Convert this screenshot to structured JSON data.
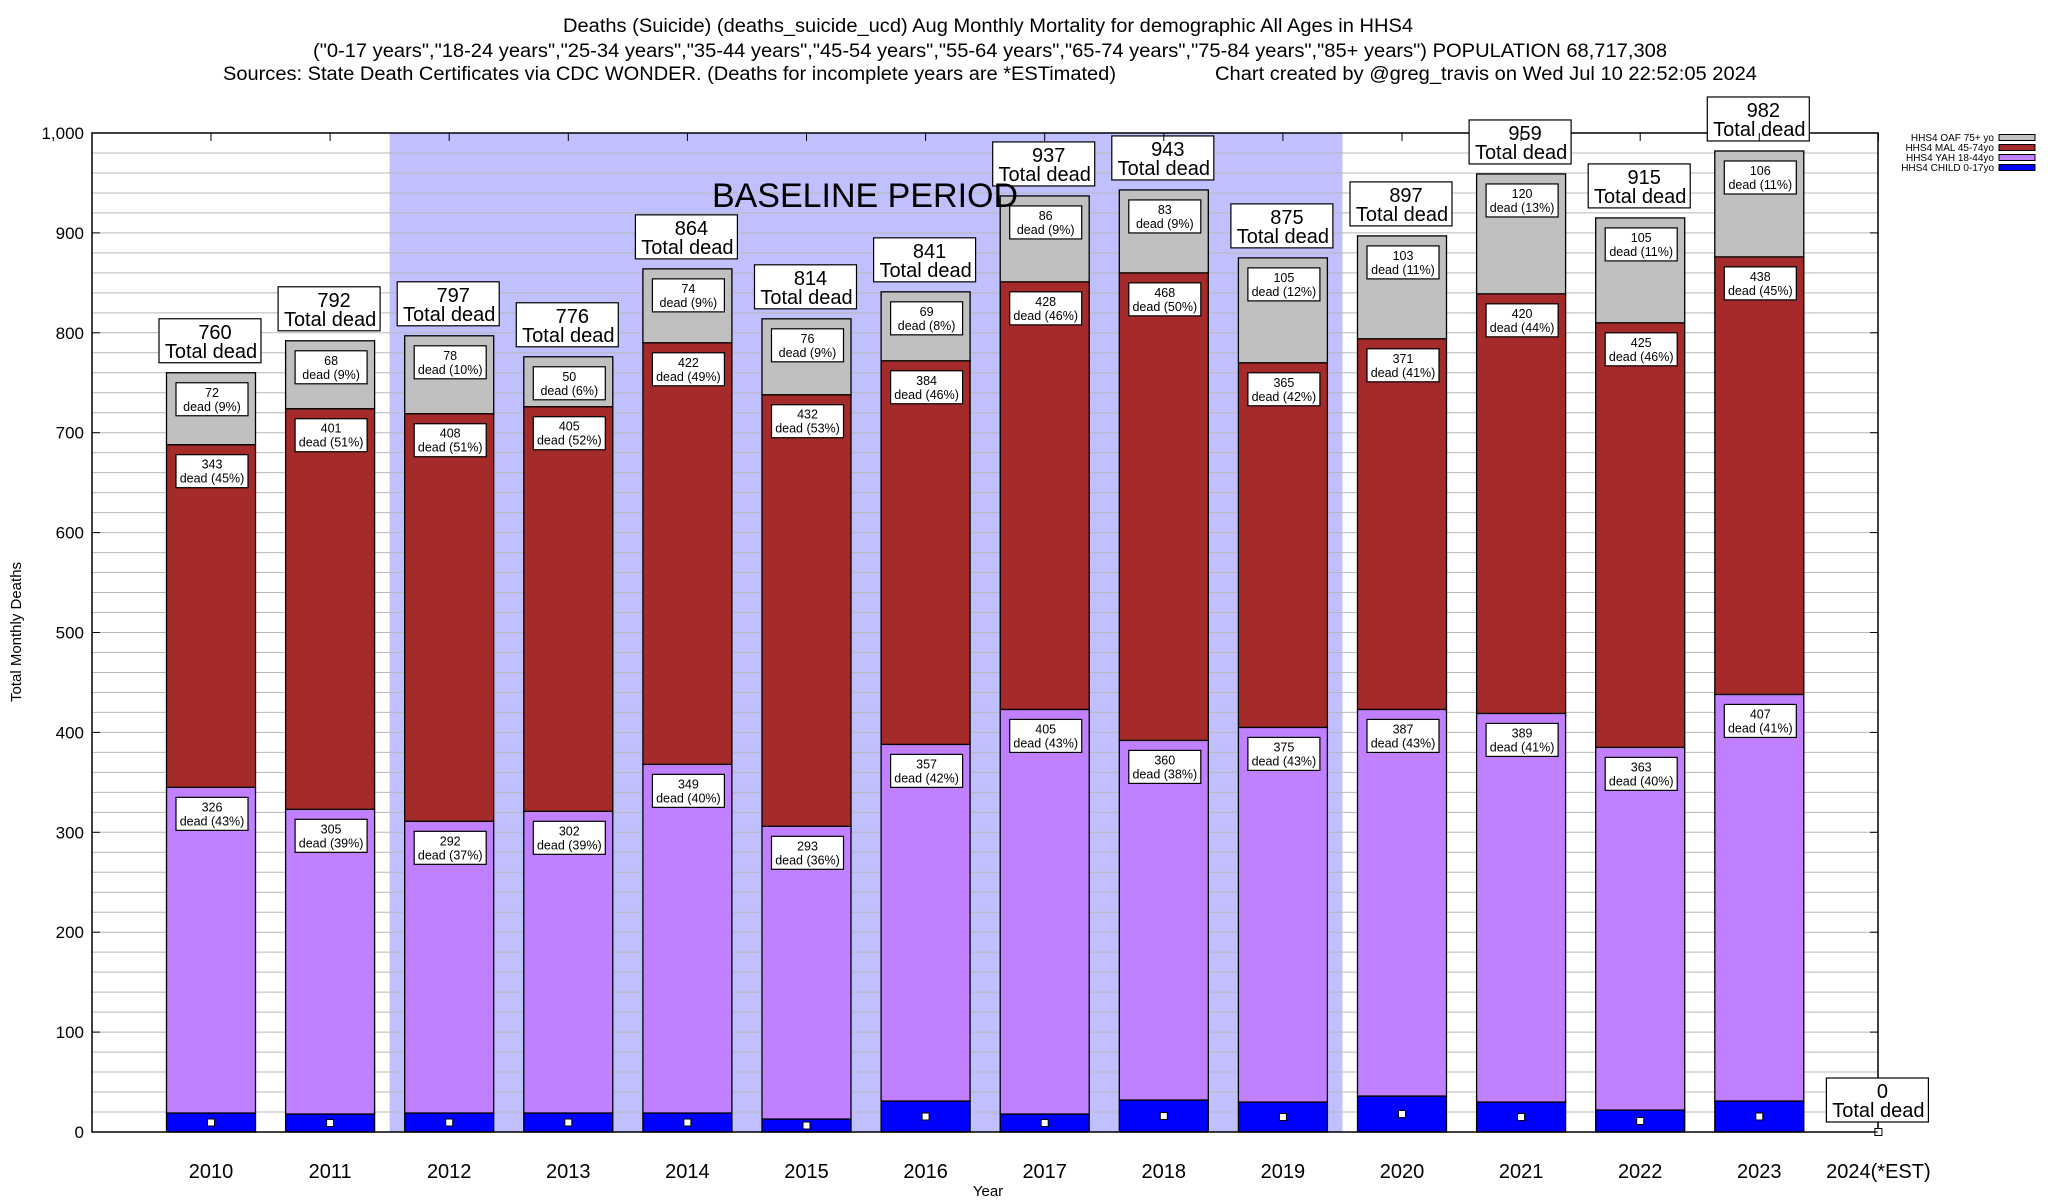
{
  "chart_data": {
    "type": "bar",
    "stacked": true,
    "title": "Deaths (Suicide) (deaths_suicide_ucd) Aug Monthly Mortality for demographic All Ages in HHS4",
    "subtitle": "(\"0-17 years\",\"18-24 years\",\"25-34 years\",\"35-44 years\",\"45-54 years\",\"55-64 years\",\"65-74 years\",\"75-84 years\",\"85+ years\") POPULATION 68,717,308",
    "sources": "Sources: State Death Certificates via CDC WONDER. (Deaths for incomplete years are *ESTimated)",
    "credit": "Chart created by @greg_travis on Wed Jul 10 22:52:05 2024",
    "xlabel": "Year",
    "ylabel": "Total Monthly Deaths",
    "ylim": [
      0,
      1000
    ],
    "yticks": [
      0,
      100,
      200,
      300,
      400,
      500,
      600,
      700,
      800,
      900,
      1000
    ],
    "ytick_labels": [
      "0",
      "100",
      "200",
      "300",
      "400",
      "500",
      "600",
      "700",
      "800",
      "900",
      "1,000"
    ],
    "grid": true,
    "legend_position": "top-right",
    "categories": [
      "2010",
      "2011",
      "2012",
      "2013",
      "2014",
      "2015",
      "2016",
      "2017",
      "2018",
      "2019",
      "2020",
      "2021",
      "2022",
      "2023",
      "2024(*EST)"
    ],
    "series": [
      {
        "name": "HHS4 CHILD 0-17yo",
        "color": "#0000ff",
        "values": [
          19,
          18,
          19,
          19,
          19,
          13,
          31,
          18,
          32,
          30,
          36,
          30,
          22,
          31,
          0
        ],
        "labeled": false
      },
      {
        "name": "HHS4 YAH 18-44yo",
        "color": "#c080ff",
        "values": [
          326,
          305,
          292,
          302,
          349,
          293,
          357,
          405,
          360,
          375,
          387,
          389,
          363,
          407,
          0
        ],
        "pct": [
          43,
          39,
          37,
          39,
          40,
          36,
          42,
          43,
          38,
          43,
          43,
          41,
          40,
          41,
          null
        ],
        "labeled": true
      },
      {
        "name": "HHS4 MAL 45-74yo",
        "color": "#a52a2a",
        "values": [
          343,
          401,
          408,
          405,
          422,
          432,
          384,
          428,
          468,
          365,
          371,
          420,
          425,
          438,
          0
        ],
        "pct": [
          45,
          51,
          51,
          52,
          49,
          53,
          46,
          46,
          50,
          42,
          41,
          44,
          46,
          45,
          null
        ],
        "labeled": true
      },
      {
        "name": "HHS4 OAF 75+ yo",
        "color": "#c0c0c0",
        "values": [
          72,
          68,
          78,
          50,
          74,
          76,
          69,
          86,
          83,
          105,
          103,
          120,
          105,
          106,
          0
        ],
        "pct": [
          9,
          9,
          10,
          6,
          9,
          9,
          8,
          9,
          9,
          12,
          11,
          13,
          11,
          11,
          null
        ],
        "labeled": true
      }
    ],
    "totals": [
      760,
      792,
      797,
      776,
      864,
      814,
      841,
      937,
      943,
      875,
      897,
      959,
      915,
      982,
      0
    ],
    "total_suffix": "Total dead",
    "dead_word": "dead",
    "legend_order": [
      "HHS4 OAF 75+ yo",
      "HHS4 MAL 45-74yo",
      "HHS4 YAH 18-44yo",
      "HHS4 CHILD 0-17yo"
    ],
    "annotation": {
      "text": "BASELINE PERIOD",
      "from_category": "2012",
      "to_category": "2019",
      "color": "#c0c0ff"
    }
  }
}
